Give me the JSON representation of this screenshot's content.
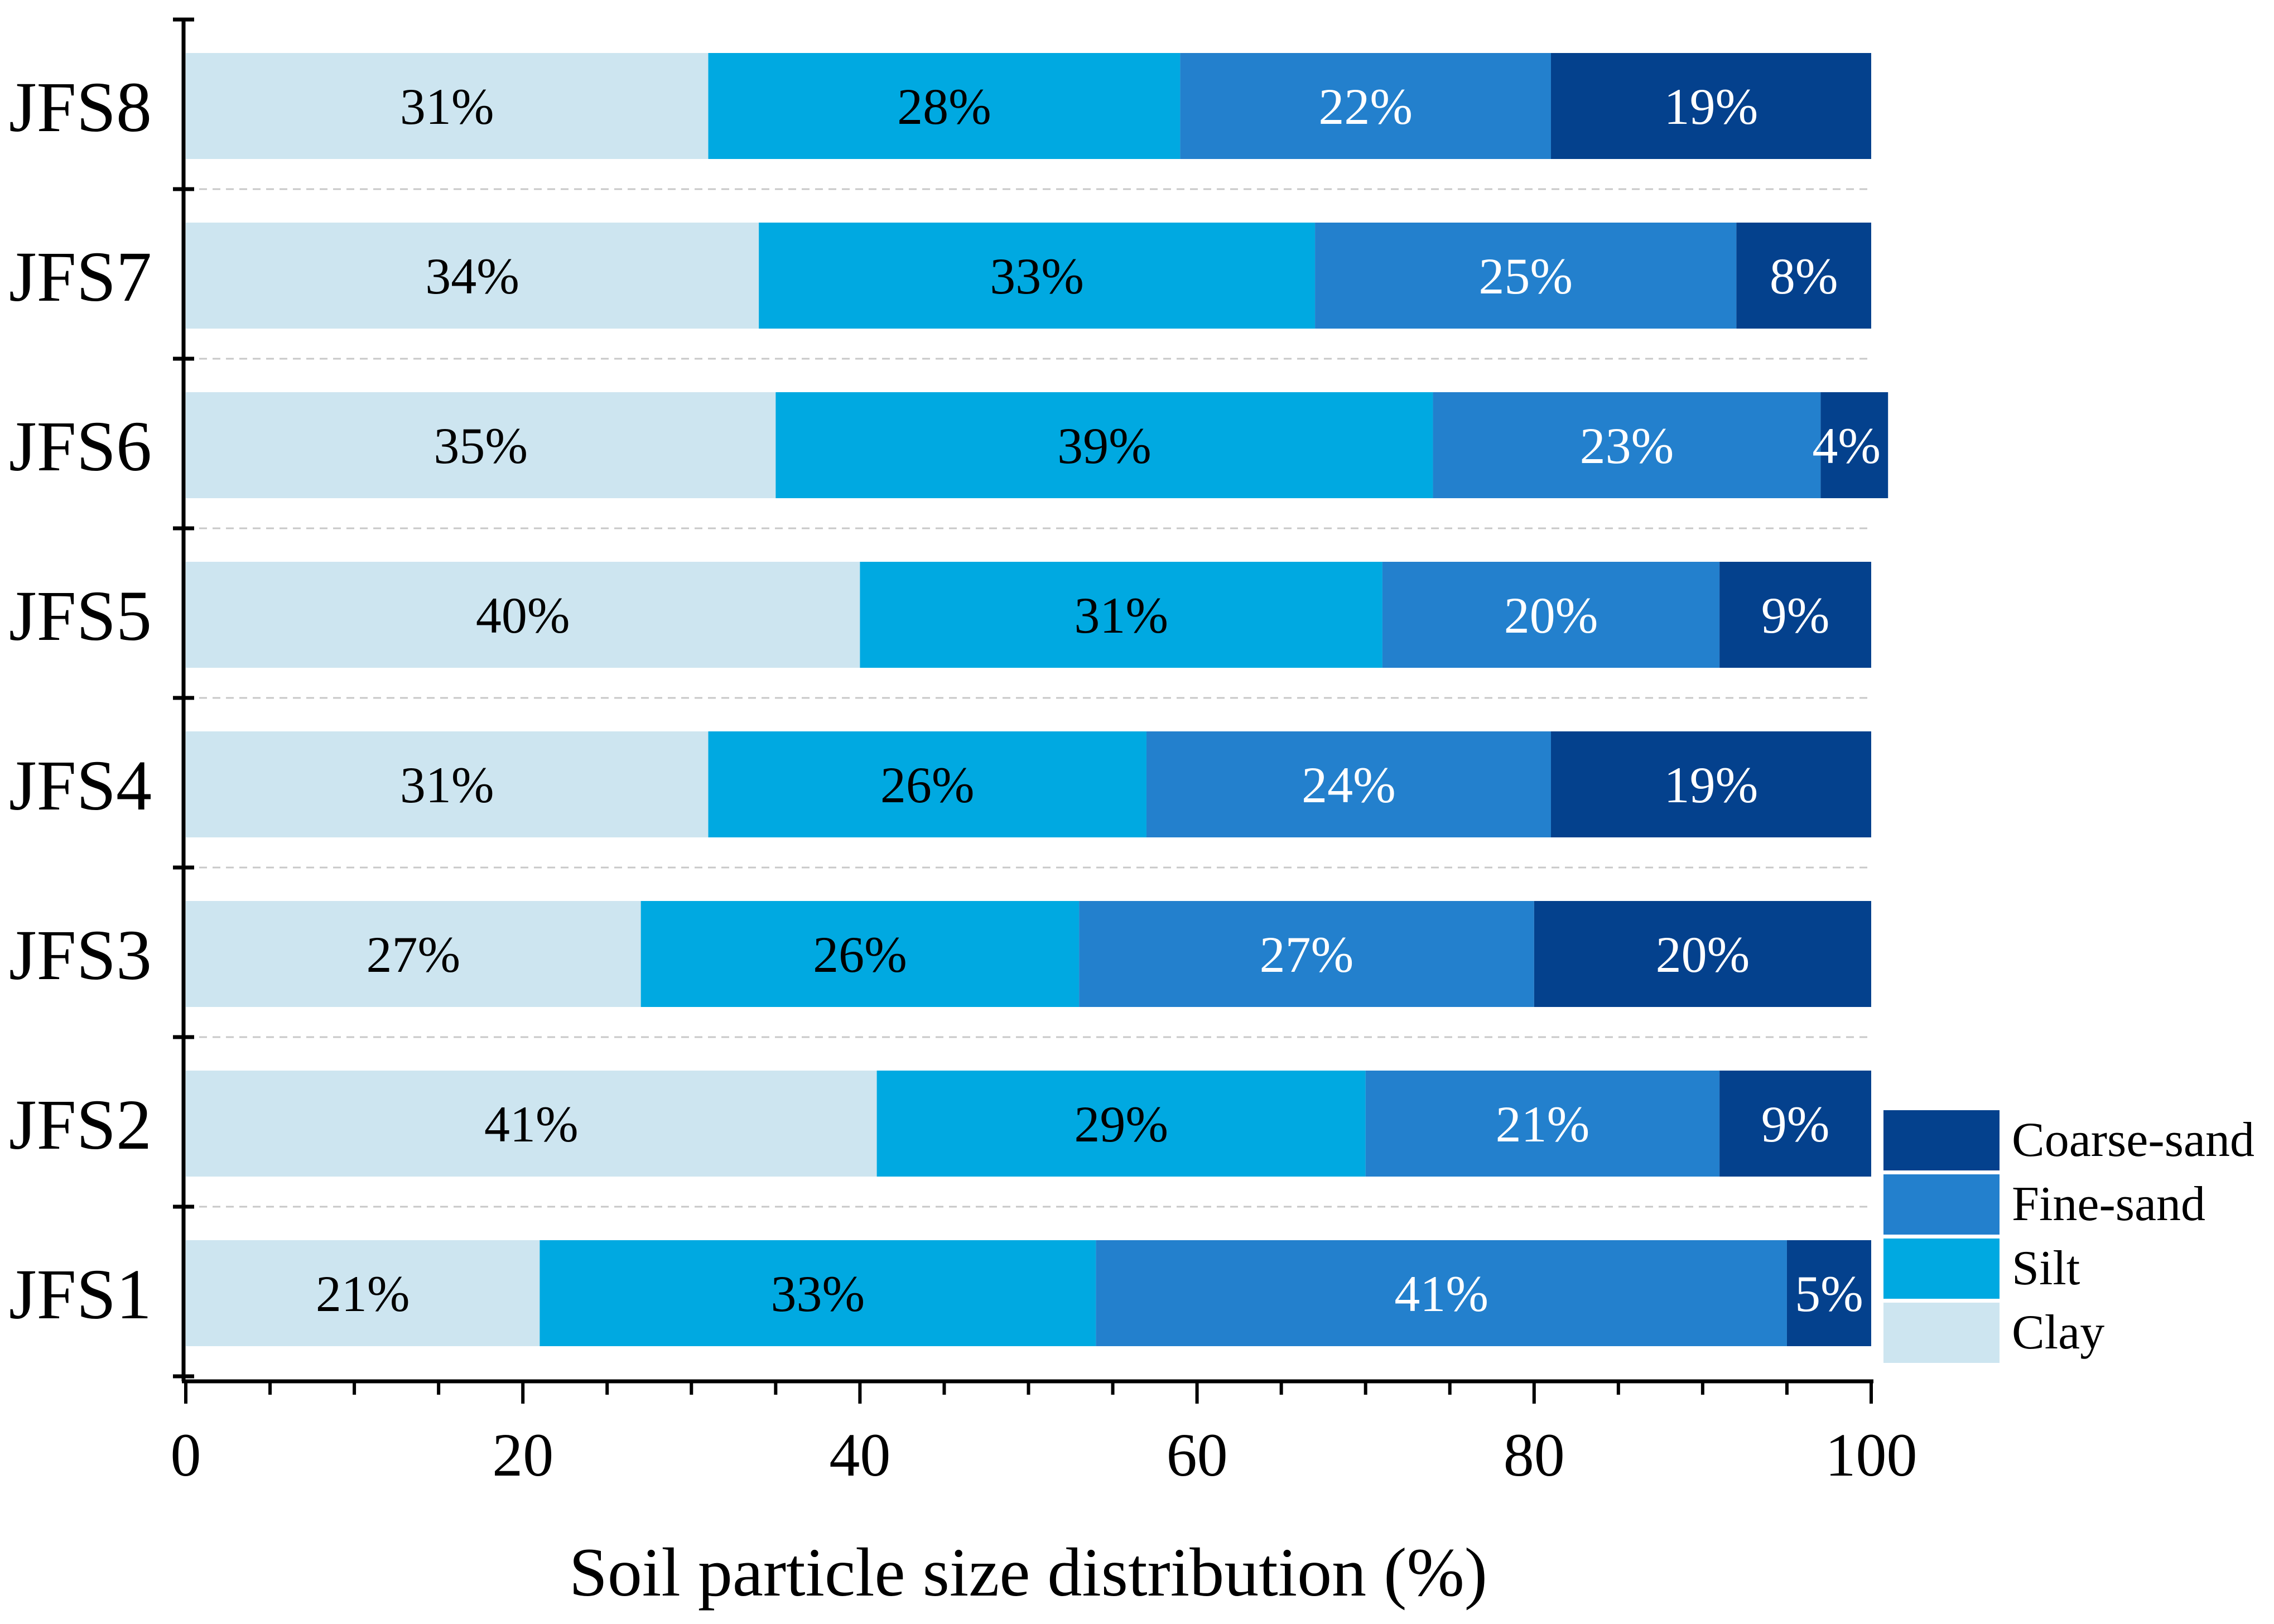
{
  "chart_data": {
    "type": "bar",
    "orientation": "horizontal",
    "stacked": true,
    "categories": [
      "JFS8",
      "JFS7",
      "JFS6",
      "JFS5",
      "JFS4",
      "JFS3",
      "JFS2",
      "JFS1"
    ],
    "series": [
      {
        "name": "Clay",
        "color": "#cde5f0",
        "label_color": "#000000",
        "values": [
          31,
          34,
          35,
          40,
          31,
          27,
          41,
          21
        ]
      },
      {
        "name": "Silt",
        "color": "#00a9e1",
        "label_color": "#000000",
        "values": [
          28,
          33,
          39,
          31,
          26,
          26,
          29,
          33
        ]
      },
      {
        "name": "Fine-sand",
        "color": "#2380cd",
        "label_color": "#ffffff",
        "values": [
          22,
          25,
          23,
          20,
          24,
          27,
          21,
          41
        ]
      },
      {
        "name": "Coarse-sand",
        "color": "#04418d",
        "label_color": "#ffffff",
        "values": [
          19,
          8,
          4,
          9,
          19,
          20,
          9,
          5
        ]
      }
    ],
    "data_labels": [
      [
        "31%",
        "28%",
        "22%",
        "19%"
      ],
      [
        "34%",
        "33%",
        "25%",
        "8%"
      ],
      [
        "35%",
        "39%",
        "23%",
        "4%"
      ],
      [
        "40%",
        "31%",
        "20%",
        "9%"
      ],
      [
        "31%",
        "26%",
        "24%",
        "19%"
      ],
      [
        "27%",
        "26%",
        "27%",
        "20%"
      ],
      [
        "41%",
        "29%",
        "21%",
        "9%"
      ],
      [
        "21%",
        "33%",
        "41%",
        "5%"
      ]
    ],
    "xlabel": "Soil particle size distribution (%)",
    "ylabel": "",
    "xlim": [
      0,
      100
    ],
    "xticks": [
      "0",
      "20",
      "40",
      "60",
      "80",
      "100"
    ],
    "legend": {
      "placement": "bottom-right",
      "order": [
        "Coarse-sand",
        "Fine-sand",
        "Silt",
        "Clay"
      ]
    },
    "grid": "dashed horizontal separators between bars"
  }
}
